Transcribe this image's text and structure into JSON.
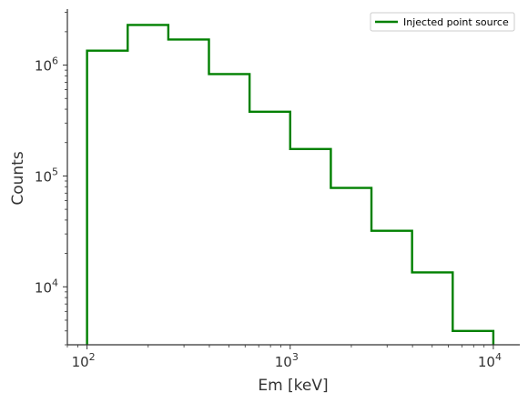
{
  "chart_data": {
    "type": "line",
    "drawstyle": "steps-post",
    "xlabel": "Em [keV]",
    "ylabel": "Counts",
    "xscale": "log",
    "yscale": "log",
    "xlim": [
      80,
      13500
    ],
    "ylim": [
      3000,
      3200000
    ],
    "x_ticks": [
      {
        "base": "10",
        "exp": "2"
      },
      {
        "base": "10",
        "exp": "3"
      },
      {
        "base": "10",
        "exp": "4"
      }
    ],
    "y_ticks": [
      {
        "base": "10",
        "exp": "4"
      },
      {
        "base": "10",
        "exp": "5"
      },
      {
        "base": "10",
        "exp": "6"
      }
    ],
    "bin_edges": [
      100,
      158.5,
      251.2,
      398.1,
      631,
      1000,
      1585,
      2512,
      3981,
      6310,
      10000
    ],
    "series": [
      {
        "name": "Injected point source",
        "color": "#008000",
        "values": [
          1350000,
          2300000,
          1700000,
          830000,
          380000,
          175000,
          78000,
          32000,
          13500,
          4000
        ]
      }
    ],
    "legend": {
      "position": "top-right",
      "entries": [
        "Injected point source"
      ]
    },
    "grid": false
  }
}
